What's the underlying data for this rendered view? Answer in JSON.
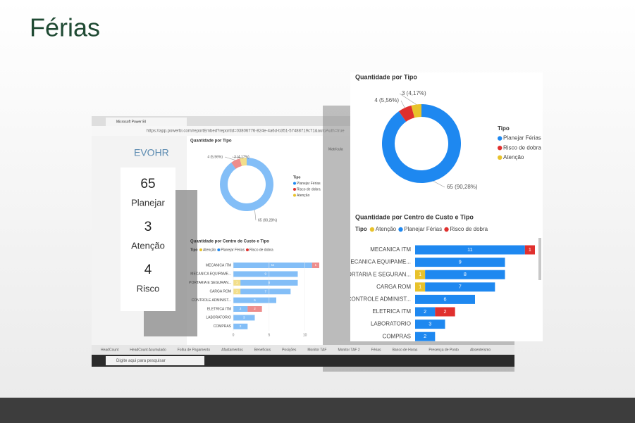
{
  "title": "Férias",
  "kpis": [
    {
      "value": 65,
      "label": "Planejar"
    },
    {
      "value": 3,
      "label": "Atenção"
    },
    {
      "value": 4,
      "label": "Risco"
    }
  ],
  "browser": {
    "tab": "Microsoft Power BI",
    "url": "https://app.powerbi.com/reportEmbed?reportId=03806776-824e-4a6d-b351-57488719c71&autoAuth=true"
  },
  "logo": "EVOHR",
  "column_header": "Matrícula",
  "tabs": [
    "HeadCount",
    "HeadCount Acumulado",
    "Folha de Pagamento",
    "Afastamentos",
    "Benefícios",
    "Posições",
    "Monitor TAF",
    "Monitor TAF 2",
    "Férias",
    "Banco de Horas",
    "Presença de Ponto",
    "Absenteísmo"
  ],
  "search": "Digite aqui para pesquisar",
  "chart_data": [
    {
      "type": "donut",
      "title": "Quantidade por Tipo",
      "legend_title": "Tipo",
      "categories": [
        "Planejar Férias",
        "Risco de dobra",
        "Atenção"
      ],
      "values": [
        65,
        4,
        3
      ],
      "value_labels": [
        "65 (90,28%)",
        "4 (5,56%)",
        "3 (4,17%)"
      ],
      "colors": [
        "#1e88f0",
        "#e0302e",
        "#e8c22b"
      ]
    },
    {
      "type": "bar",
      "orientation": "horizontal",
      "stacked": true,
      "title": "Quantidade por Centro de Custo e Tipo",
      "legend_title": "Tipo",
      "categories": [
        "MECANICA ITM",
        "MECANICA EQUIPAME...",
        "PORTARIA E SEGURAN...",
        "CARGA ROM",
        "CONTROLE ADMINIST...",
        "ELETRICA ITM",
        "LABORATORIO",
        "COMPRAS"
      ],
      "series": [
        {
          "name": "Atenção",
          "color": "#e8c22b",
          "values": [
            null,
            null,
            1,
            1,
            null,
            null,
            null,
            null
          ]
        },
        {
          "name": "Planejar Férias",
          "color": "#1e88f0",
          "values": [
            11,
            9,
            8,
            7,
            6,
            2,
            3,
            2
          ]
        },
        {
          "name": "Risco de dobra",
          "color": "#e0302e",
          "values": [
            1,
            null,
            null,
            null,
            null,
            2,
            null,
            null
          ]
        }
      ],
      "xlim": [
        0,
        12
      ],
      "xticks": [
        0,
        5,
        10
      ]
    }
  ]
}
